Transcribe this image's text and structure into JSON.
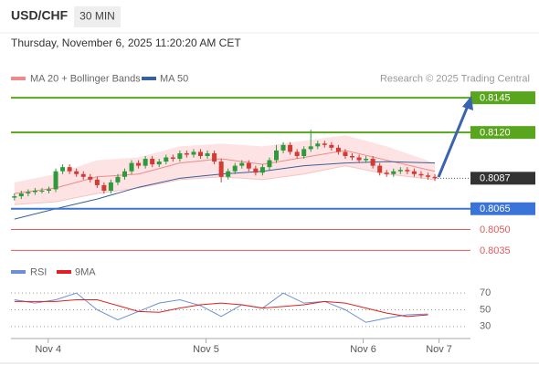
{
  "chart_data": {
    "type": "candlestick",
    "title": "USD/CHF",
    "timeframe": "30 MIN",
    "subtitle": "Thursday, November 6, 2025 11:20:20 AM CET",
    "source": "Research © 2025 Trading Central",
    "ylim": [
      0.8028,
      0.8153
    ],
    "xlim": [
      -0.5,
      65.5
    ],
    "xticks": [
      {
        "value": 4.9,
        "label": "Nov 4"
      },
      {
        "value": 27.8,
        "label": "Nov 5"
      },
      {
        "value": 50.6,
        "label": "Nov 6"
      },
      {
        "value": 61.6,
        "label": "Nov 7"
      }
    ],
    "up_color": "#2e9a3c",
    "down_color": "#d23a32",
    "candles": [
      [
        0.8073,
        0.8076,
        0.8071,
        0.8074
      ],
      [
        0.8074,
        0.8078,
        0.8072,
        0.8076
      ],
      [
        0.8076,
        0.8079,
        0.8074,
        0.8077
      ],
      [
        0.8077,
        0.808,
        0.8075,
        0.8078
      ],
      [
        0.8078,
        0.808,
        0.8076,
        0.8078
      ],
      [
        0.8078,
        0.8081,
        0.8076,
        0.8079
      ],
      [
        0.8079,
        0.8094,
        0.8077,
        0.8092
      ],
      [
        0.8092,
        0.8097,
        0.809,
        0.8095
      ],
      [
        0.8095,
        0.8097,
        0.809,
        0.8092
      ],
      [
        0.8092,
        0.8094,
        0.8088,
        0.809
      ],
      [
        0.809,
        0.8092,
        0.8086,
        0.8088
      ],
      [
        0.8088,
        0.809,
        0.8084,
        0.8086
      ],
      [
        0.8086,
        0.8088,
        0.808,
        0.8082
      ],
      [
        0.8082,
        0.8084,
        0.8076,
        0.8078
      ],
      [
        0.8078,
        0.8086,
        0.8076,
        0.8084
      ],
      [
        0.8084,
        0.809,
        0.8082,
        0.8088
      ],
      [
        0.8088,
        0.8094,
        0.8086,
        0.8092
      ],
      [
        0.8092,
        0.81,
        0.809,
        0.8098
      ],
      [
        0.8098,
        0.81,
        0.8094,
        0.8096
      ],
      [
        0.8096,
        0.8103,
        0.8094,
        0.8101
      ],
      [
        0.8101,
        0.8103,
        0.8095,
        0.8097
      ],
      [
        0.8097,
        0.8101,
        0.8095,
        0.8099
      ],
      [
        0.8099,
        0.8104,
        0.8097,
        0.8102
      ],
      [
        0.8102,
        0.8104,
        0.8099,
        0.8101
      ],
      [
        0.8101,
        0.8107,
        0.8099,
        0.8105
      ],
      [
        0.8105,
        0.8107,
        0.8102,
        0.8104
      ],
      [
        0.8104,
        0.8108,
        0.8102,
        0.8106
      ],
      [
        0.8106,
        0.8108,
        0.8101,
        0.8103
      ],
      [
        0.8103,
        0.8107,
        0.8101,
        0.8105
      ],
      [
        0.8105,
        0.8107,
        0.8097,
        0.8099
      ],
      [
        0.8099,
        0.8101,
        0.8084,
        0.8088
      ],
      [
        0.8088,
        0.8094,
        0.8086,
        0.8092
      ],
      [
        0.8092,
        0.8098,
        0.809,
        0.8096
      ],
      [
        0.8096,
        0.81,
        0.8094,
        0.8098
      ],
      [
        0.8098,
        0.81,
        0.8092,
        0.8094
      ],
      [
        0.8094,
        0.8096,
        0.8089,
        0.8091
      ],
      [
        0.8091,
        0.8097,
        0.8089,
        0.8095
      ],
      [
        0.8095,
        0.8102,
        0.8093,
        0.81
      ],
      [
        0.81,
        0.8111,
        0.8098,
        0.8107
      ],
      [
        0.8107,
        0.8113,
        0.8105,
        0.8111
      ],
      [
        0.8111,
        0.8113,
        0.8104,
        0.8106
      ],
      [
        0.8106,
        0.8108,
        0.8101,
        0.8103
      ],
      [
        0.8103,
        0.811,
        0.8101,
        0.8108
      ],
      [
        0.8108,
        0.8122,
        0.8106,
        0.811
      ],
      [
        0.811,
        0.8114,
        0.8108,
        0.8112
      ],
      [
        0.8112,
        0.8114,
        0.8109,
        0.8111
      ],
      [
        0.8111,
        0.8113,
        0.8107,
        0.8109
      ],
      [
        0.8109,
        0.8111,
        0.8104,
        0.8106
      ],
      [
        0.8106,
        0.8108,
        0.8101,
        0.8103
      ],
      [
        0.8103,
        0.8105,
        0.81,
        0.8102
      ],
      [
        0.8102,
        0.8104,
        0.8098,
        0.81
      ],
      [
        0.81,
        0.8103,
        0.8098,
        0.8101
      ],
      [
        0.8101,
        0.8103,
        0.8094,
        0.8096
      ],
      [
        0.8096,
        0.8098,
        0.8089,
        0.8091
      ],
      [
        0.8091,
        0.8093,
        0.8088,
        0.809
      ],
      [
        0.809,
        0.8094,
        0.8088,
        0.8092
      ],
      [
        0.8092,
        0.8095,
        0.809,
        0.8093
      ],
      [
        0.8093,
        0.8095,
        0.809,
        0.8092
      ],
      [
        0.8092,
        0.8094,
        0.8088,
        0.809
      ],
      [
        0.809,
        0.8092,
        0.8087,
        0.8089
      ],
      [
        0.8089,
        0.8091,
        0.8086,
        0.8088
      ],
      [
        0.8088,
        0.809,
        0.8085,
        0.8087
      ]
    ],
    "bollinger": {
      "name": "MA 20 + Bollinger Bands",
      "color": "#f08a8a",
      "band_color": "#fde3e3",
      "x": [
        0,
        6,
        12,
        18,
        24,
        30,
        36,
        42,
        48,
        54,
        61
      ],
      "ma": [
        0.8076,
        0.808,
        0.8088,
        0.809,
        0.8098,
        0.8101,
        0.8097,
        0.8102,
        0.8107,
        0.81,
        0.8092
      ],
      "upper": [
        0.8084,
        0.809,
        0.81,
        0.8102,
        0.811,
        0.8112,
        0.811,
        0.8114,
        0.8118,
        0.811,
        0.8098
      ],
      "lower": [
        0.8068,
        0.807,
        0.8076,
        0.808,
        0.8086,
        0.8088,
        0.8086,
        0.809,
        0.8096,
        0.809,
        0.8086
      ]
    },
    "ma50": {
      "name": "MA 50",
      "color": "#3a5f9e",
      "x": [
        0,
        6,
        12,
        18,
        24,
        30,
        36,
        42,
        48,
        54,
        61
      ],
      "values": [
        0.80575,
        0.8065,
        0.8072,
        0.80805,
        0.8087,
        0.809,
        0.8092,
        0.8096,
        0.8098,
        0.8099,
        0.8098
      ]
    },
    "levels": [
      {
        "value": 0.8145,
        "label": "0.8145",
        "color": "#5aa51e",
        "style": "box"
      },
      {
        "value": 0.812,
        "label": "0.8120",
        "color": "#5aa51e",
        "style": "box"
      },
      {
        "value": 0.8087,
        "label": "0.8087",
        "color": "#333333",
        "style": "current"
      },
      {
        "value": 0.8065,
        "label": "0.8065",
        "color": "#3b74d9",
        "style": "box"
      },
      {
        "value": 0.805,
        "label": "0.8050",
        "color": "#e05a5a",
        "style": "text"
      },
      {
        "value": 0.8035,
        "label": "0.8035",
        "color": "#e05a5a",
        "style": "text"
      }
    ],
    "rsi": {
      "ylim": [
        20,
        80
      ],
      "yticks": [
        30,
        50,
        70
      ],
      "x": [
        0,
        3,
        6,
        9,
        12,
        15,
        18,
        21,
        24,
        27,
        30,
        33,
        36,
        39,
        42,
        45,
        48,
        51,
        54,
        57,
        60
      ],
      "series": [
        {
          "name": "RSI",
          "color": "#6b8fd6",
          "values": [
            62,
            58,
            62,
            70,
            50,
            38,
            48,
            58,
            62,
            55,
            42,
            56,
            52,
            70,
            58,
            60,
            50,
            35,
            40,
            44,
            45
          ]
        },
        {
          "name": "9MA",
          "color": "#e02020",
          "values": [
            60,
            60,
            60,
            62,
            62,
            55,
            48,
            47,
            52,
            56,
            58,
            56,
            52,
            54,
            56,
            60,
            58,
            52,
            46,
            42,
            44
          ]
        }
      ]
    }
  }
}
